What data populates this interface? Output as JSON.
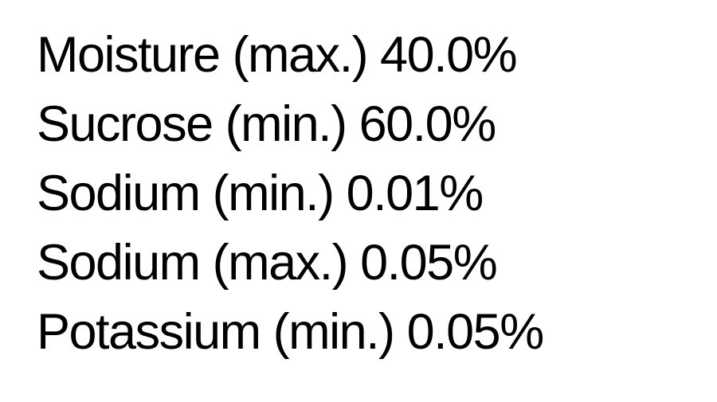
{
  "specs": [
    {
      "text": "Moisture (max.) 40.0%"
    },
    {
      "text": "Sucrose (min.) 60.0%"
    },
    {
      "text": "Sodium (min.) 0.01%"
    },
    {
      "text": "Sodium (max.) 0.05%"
    },
    {
      "text": "Potassium (min.) 0.05%"
    }
  ]
}
